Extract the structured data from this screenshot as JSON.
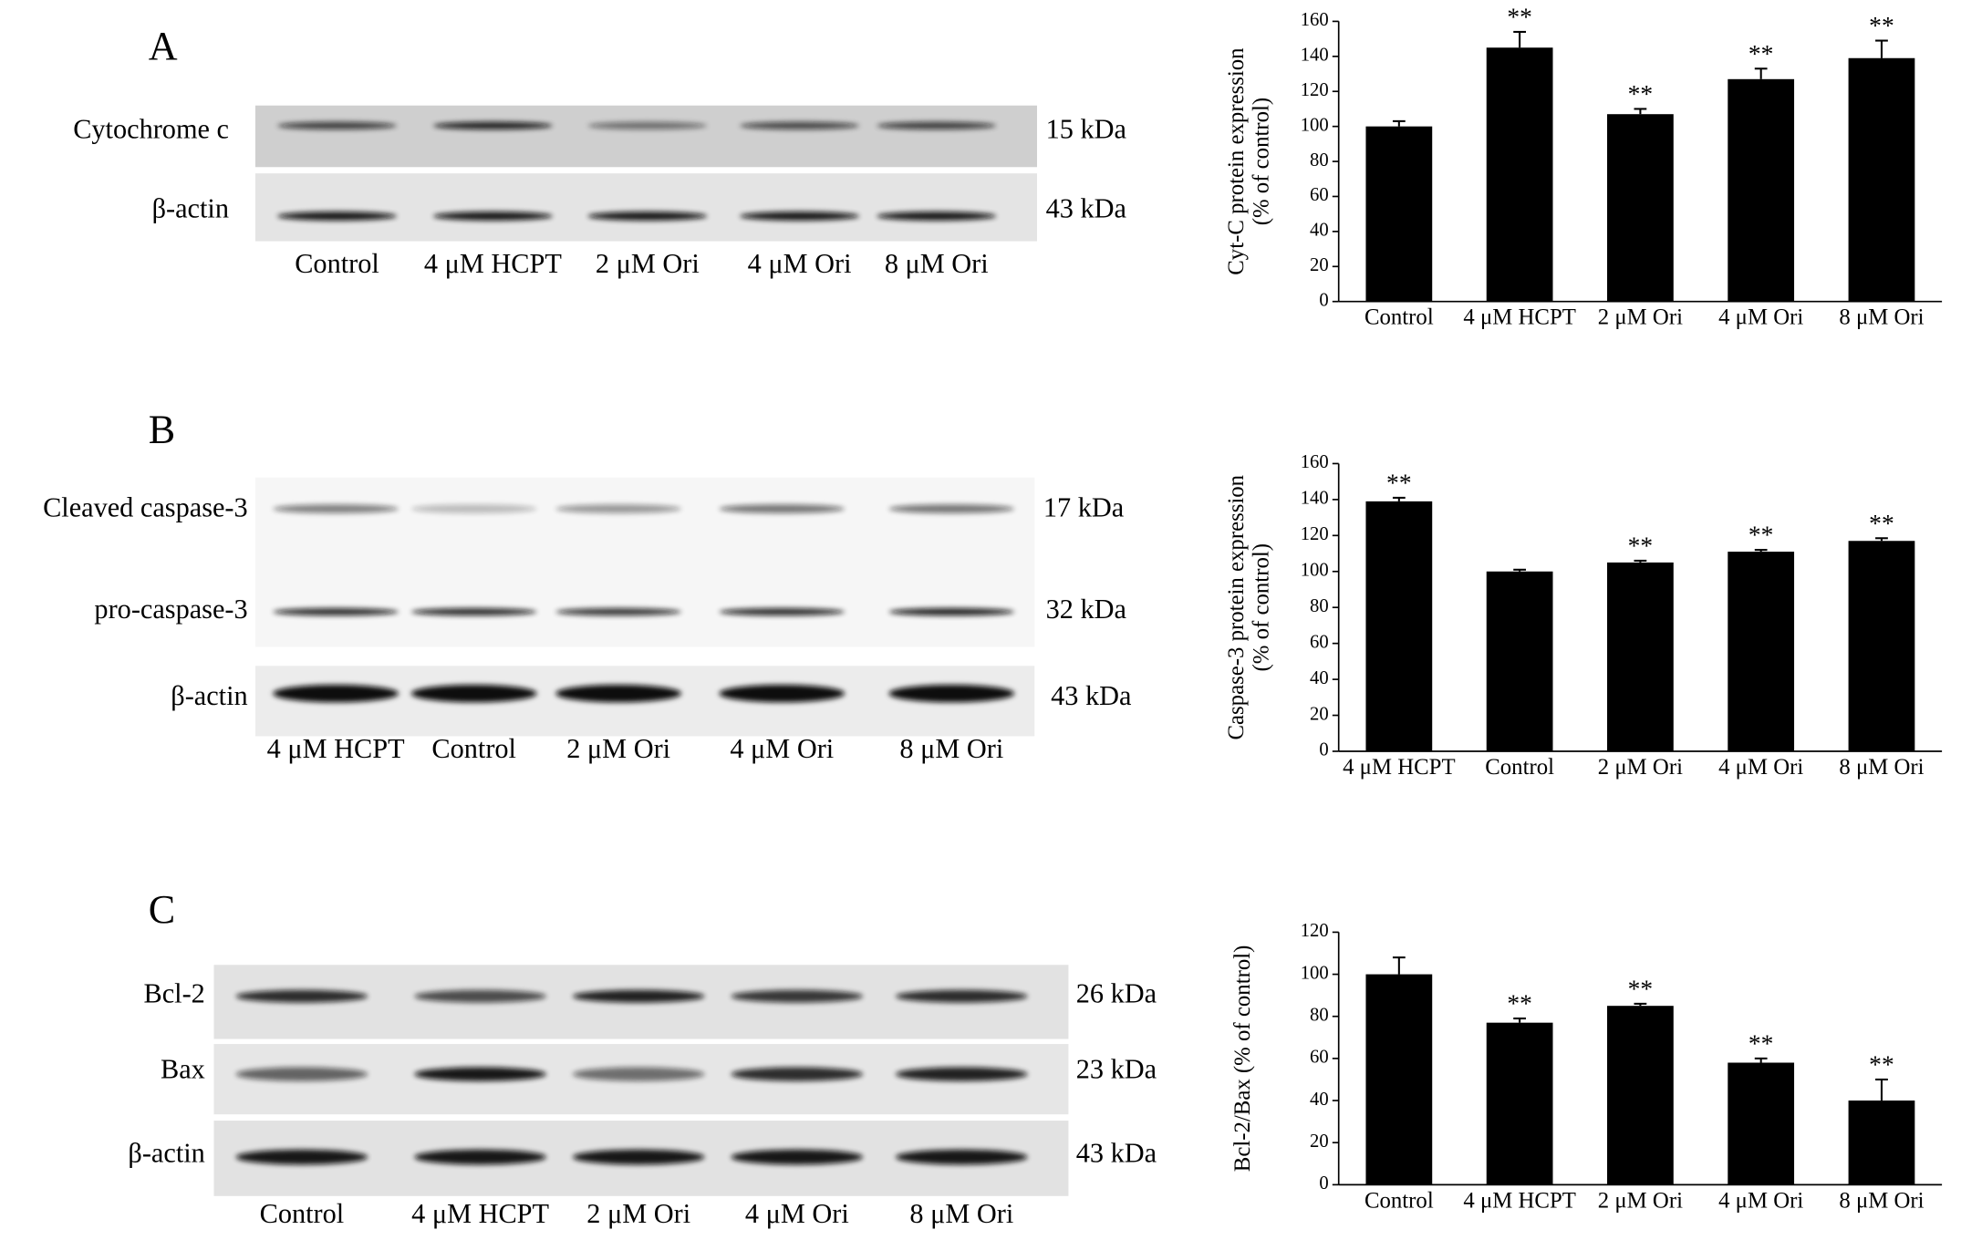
{
  "blots": [
    {
      "panel": "A",
      "rows": [
        {
          "label": "Cytochrome c",
          "kda": "15 kDa"
        },
        {
          "label": "β-actin",
          "kda": "43 kDa"
        }
      ],
      "lanes": [
        "Control",
        "4 μM HCPT",
        "2 μM Ori",
        "4 μM Ori",
        "8 μM Ori"
      ]
    },
    {
      "panel": "B",
      "rows": [
        {
          "label": "Cleaved caspase-3",
          "kda": "17 kDa"
        },
        {
          "label": "pro-caspase-3",
          "kda": "32 kDa"
        },
        {
          "label": "β-actin",
          "kda": "43 kDa"
        }
      ],
      "lanes": [
        "4 μM HCPT",
        "Control",
        "2 μM Ori",
        "4 μM Ori",
        "8 μM Ori"
      ]
    },
    {
      "panel": "C",
      "rows": [
        {
          "label": "Bcl-2",
          "kda": "26 kDa"
        },
        {
          "label": "Bax",
          "kda": "23 kDa"
        },
        {
          "label": "β-actin",
          "kda": "43 kDa"
        }
      ],
      "lanes": [
        "Control",
        "4 μM HCPT",
        "2 μM Ori",
        "4 μM Ori",
        "8 μM Ori"
      ]
    }
  ],
  "chart_data": [
    {
      "type": "bar",
      "ylabel": [
        "Cyt-C protein expression",
        "(% of control)"
      ],
      "categories": [
        "Control",
        "4 μM HCPT",
        "2 μM Ori",
        "4 μM Ori",
        "8 μM Ori"
      ],
      "values": [
        100,
        145,
        107,
        127,
        139
      ],
      "errors": [
        3,
        9,
        3,
        6,
        10
      ],
      "annotations": [
        null,
        "**",
        "**",
        "**",
        "**"
      ],
      "color": "#000000",
      "ylim": [
        0,
        160
      ],
      "yticks": [
        0,
        20,
        40,
        60,
        80,
        100,
        120,
        140,
        160
      ]
    },
    {
      "type": "bar",
      "ylabel": [
        "Caspase-3 protein expression",
        "(% of control)"
      ],
      "categories": [
        "4 μM HCPT",
        "Control",
        "2 μM Ori",
        "4 μM Ori",
        "8 μM Ori"
      ],
      "values": [
        139,
        100,
        105,
        111,
        117
      ],
      "errors": [
        2,
        1,
        1,
        1,
        1.5
      ],
      "annotations": [
        "**",
        null,
        "**",
        "**",
        "**"
      ],
      "color": "#000000",
      "ylim": [
        0,
        160
      ],
      "yticks": [
        0,
        20,
        40,
        60,
        80,
        100,
        120,
        140,
        160
      ]
    },
    {
      "type": "bar",
      "ylabel": [
        "Bcl-2/Bax (% of control)"
      ],
      "categories": [
        "Control",
        "4 μM HCPT",
        "2 μM Ori",
        "4 μM Ori",
        "8 μM Ori"
      ],
      "values": [
        100,
        77,
        85,
        58,
        40
      ],
      "errors": [
        8,
        2,
        1,
        2,
        10
      ],
      "annotations": [
        null,
        "**",
        "**",
        "**",
        "**"
      ],
      "color": "#000000",
      "ylim": [
        0,
        120
      ],
      "yticks": [
        0,
        20,
        40,
        60,
        80,
        100,
        120
      ]
    }
  ]
}
